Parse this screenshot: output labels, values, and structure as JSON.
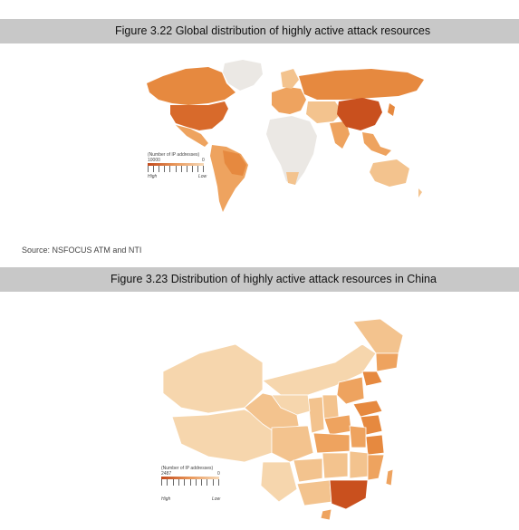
{
  "figure1": {
    "caption": "Figure 3.22 Global distribution of highly active attack resources",
    "legend": {
      "title": "(Number of IP addresses)",
      "max": "10000",
      "min": "0",
      "high": "High",
      "low": "Low"
    },
    "source": "Source: NSFOCUS ATM and NTI"
  },
  "figure2": {
    "caption": "Figure 3.23 Distribution of highly active attack resources in China",
    "legend": {
      "title": "(Number of IP addresses)",
      "max": "2487",
      "min": "0",
      "high": "High",
      "low": "Low"
    }
  },
  "colors": {
    "highest": "#c9501e",
    "high": "#e6893f",
    "medium": "#eea35f",
    "low": "#f3c38e",
    "lowest": "#f6d6ad",
    "no_data": "#ebe8e4",
    "caption_bar": "#c8c8c8"
  }
}
